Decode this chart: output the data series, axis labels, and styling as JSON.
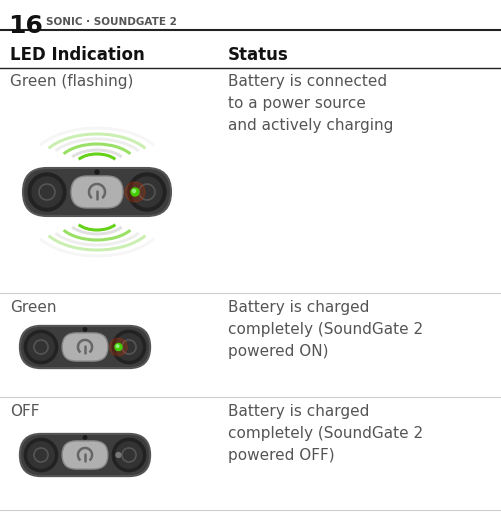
{
  "page_num": "16",
  "page_title": "SONIC · SOUNDGATE 2",
  "col1_header": "LED Indication",
  "col2_header": "Status",
  "rows": [
    {
      "led_label": "Green (flashing)",
      "status_text": "Battery is connected\nto a power source\nand actively charging",
      "led_color": "#44cc00",
      "flashing": true,
      "led_on": true
    },
    {
      "led_label": "Green",
      "status_text": "Battery is charged\ncompletely (SoundGate 2\npowered ON)",
      "led_color": "#44cc00",
      "flashing": false,
      "led_on": true
    },
    {
      "led_label": "OFF",
      "status_text": "Battery is charged\ncompletely (SoundGate 2\npowered OFF)",
      "led_color": "#888888",
      "flashing": false,
      "led_on": false
    }
  ],
  "bg_color": "#ffffff",
  "text_color": "#555555",
  "header_text_color": "#111111",
  "line_color_dark": "#333333",
  "line_color_light": "#cccccc",
  "device_body_color": "#3d3d3d",
  "device_body_edge": "#555555",
  "device_button_color": "#b0b0b0",
  "device_button_edge": "#888888",
  "device_ear_outer": "#222222",
  "device_ear_inner": "#333333",
  "device_ear_ring": "#555555",
  "power_icon_color": "#666666",
  "led_glow_color": "#cc3300",
  "arc_green": "#55cc00",
  "arc_green_alphas": [
    0.9,
    0.6,
    0.3
  ],
  "arc_gray_alphas": [
    0.35,
    0.2,
    0.1
  ]
}
